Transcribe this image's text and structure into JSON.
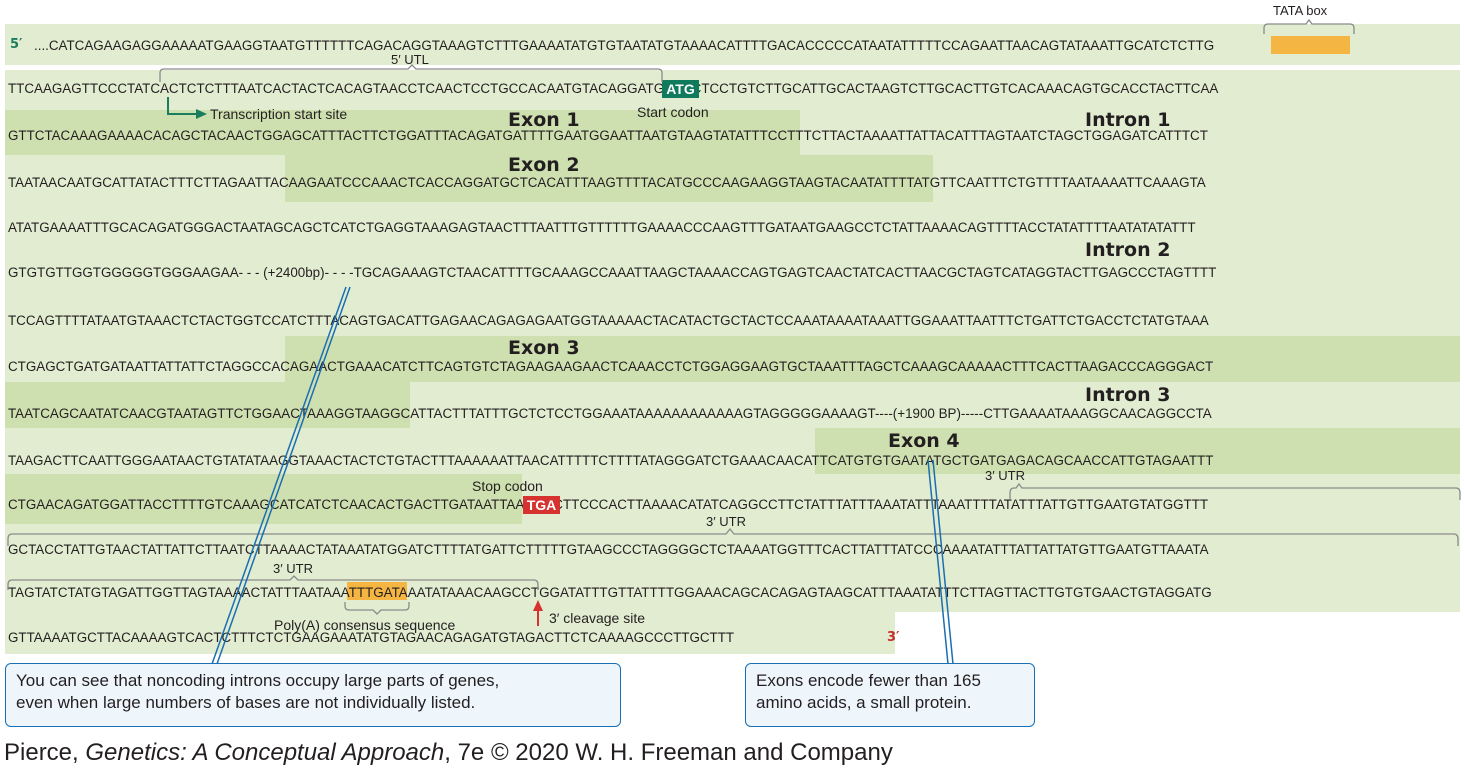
{
  "prime5": "5′",
  "prime3": "3′",
  "seq_lines": [
    "....CATCAGAAGAGGAAAAATGAAGGTAATGTTTTTTCAGACAGGTAAAGTCTTTGAAAATATGTGTAATATGTAAAACATTTTGACACCCCCATAATATTTTTCCAGAATTAACAGTATAAATTGCATCTCTTG",
    "TTCAAGAGTTCCCTATCACTCTCTTTAATCACTACTCACAGTAACCTCAACTCCTGCCACAATGTACAGGATGCAACTCCTGTCTTGCATTGCACTAAGTCTTGCACTTGTCACAAACAGTGCACCTACTTCAA",
    "GTTCTACAAAGAAAACACAGCTACAACTGGAGCATTTACTTCTGGATTTACAGATGATTTTGAATGGAATTAATGTAAGTATATTTCCTTTCTTACTAAAATTATTACATTTAGTAATCTAGCTGGAGATCATTTCT",
    "TAATAACAATGCATTATACTTTCTTAGAATTACAAGAATCCCAAACTCACCAGGATGCTCACATTTAAGTTTTACATGCCCAAGAAGGTAAGTACAATATTTTATGTTCAATTTCTGTTTTAATAAAATTCAAAGTA",
    "ATATGAAAATTTGCACAGATGGGACTAATAGCAGCTCATCTGAGGTAAAGAGTAACTTTAATTTGTTTTTTGAAAACCCAAGTTTGATAATGAAGCCTCTATTAAAACAGTTTTACCTATATTTTAATATATATTT",
    "GTGTGTTGGTGGGGGTGGGAAGAA- - - (+2400bp)- - - -TGCAGAAAGTCTAACATTTTGCAAAGCCAAATTAAGCTAAAACCAGTGAGTCAACTATCACTTAACGCTAGTCATAGGTACTTGAGCCCTAGTTTT",
    "TCCAGTTTTATAATGTAAACTCTACTGGTCCATCTTTACAGTGACATTGAGAACAGAGAGAATGGTAAAAACTACATACTGCTACTCCAAATAAAATAAATTGGAAATTAATTTCTGATTCTGACCTCTATGTAAA",
    "CTGAGCTGATGATAATTATTATTCTAGGCCACAGAACTGAAACATCTTCAGTGTCTAGAAGAAGAACTCAAACCTCTGGAGGAAGTGCTAAATTTAGCTCAAAGCAAAAACTTTCACTTAAGACCCAGGGACT",
    "TAATCAGCAATATCAACGTAATAGTTCTGGAACTAAAGGTAAGGCATTACTTTATTTGCTCTCCTGGAAATAAAAAAAAAAAAGTAGGGGGAAAAGT----(+1900 BP)-----CTTGAAAATAAAGGCAACAGGCCTA",
    "TAAGACTTCAATTGGGAATAACTGTATATAAGGTAAACTACTCTGTACTTTAAAAAATTAACATTTTTCTTTTATAGGGATCTGAAACAACATTCATGTGTGAATATGCTGATGAGACAGCAACCATTGTAGAATTT",
    "CTGAACAGATGGATTACCTTTTGTCAAAGCATCATCTCAACACTGACTTGATAATTAAGTGCTTCCCACTTAAAACATATCAGGCCTTCTATTTATTTAAATATTTAAATTTTATATTTATTGTTGAATGTATGGTTT",
    "GCTACCTATTGTAACTATTATTCTTAATCTTAAAACTATAAATATGGATCTTTTATGATTCTTTTTGTAAGCCCTAGGGGCTCTAAAATGGTTTCACTTATTTATCCCAAAATATTTATTATTATGTTGAATGTTAAATA",
    "TAGTATCTATGTAGATTGGTTAGTAAAACTATTTAATAAATTTGATAAATATAAACAAGCCTGGATATTTGTTATTTTGGAAACAGCACAGAGTAAGCATTTAAATATTTCTTAGTTACTTGTGTGAACTGTAGGATG",
    "GTTAAAATGCTTACAAAAGTCACTCTTTCTCTGAAGAAATATGTAGAACAGAGATGTAGACTTCTCAAAAGCCCTTGCTTT"
  ],
  "region_labels": {
    "exon1": "Exon 1",
    "intron1": "Intron 1",
    "exon2": "Exon 2",
    "intron2": "Intron 2",
    "exon3": "Exon 3",
    "intron3": "Intron 3",
    "exon4": "Exon 4"
  },
  "feature_labels": {
    "tata_box": "TATA box",
    "utl5": "5′ UTL",
    "transcription_start": "Transcription start site",
    "start_codon": "Start codon",
    "start_codon_seq": "ATG",
    "stop_codon": "Stop codon",
    "stop_codon_seq": "TGA",
    "utr3_a": "3′ UTR",
    "utr3_b": "3′ UTR",
    "utr3_c": "3′ UTR",
    "polya": "Poly(A) consensus sequence",
    "cleavage": "3′ cleavage site"
  },
  "callouts": {
    "introns": "You can see that noncoding introns occupy large parts of genes,\neven when large numbers of bases are not individually listed.",
    "exons": "Exons encode fewer than 165\namino acids, a small protein."
  },
  "credit": {
    "prefix": "Pierce, ",
    "title": "Genetics: A Conceptual Approach",
    "suffix": ", 7e © 2020 W. H. Freeman and Company"
  },
  "colors": {
    "band": "#e2ecd1",
    "exon": "#cfe0b0",
    "highlight": "#f5b542",
    "start_codon": "#0f7a5c",
    "stop_codon": "#d6322f",
    "callout_border": "#1a6fb3",
    "prime3": "#c0302a",
    "prime5": "#1a7d5d"
  }
}
